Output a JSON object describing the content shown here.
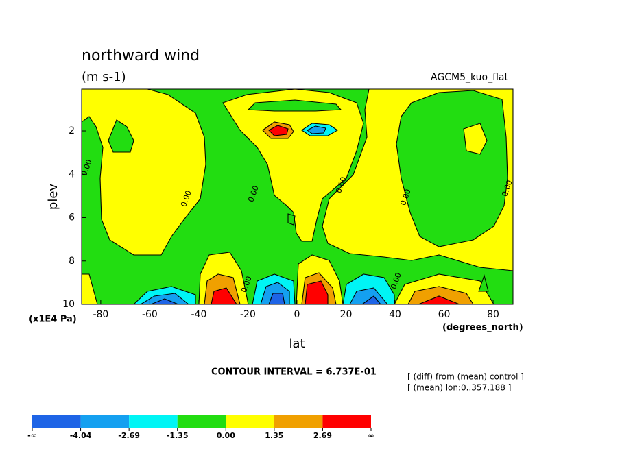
{
  "chart_data": {
    "type": "contour",
    "title": "northward wind",
    "subtitle": "(m s-1)",
    "dataset_label": "AGCM5_kuo_flat",
    "y_label": "plev",
    "y_units": "(x1E4 Pa)",
    "x_label": "lat",
    "x_units": "(degrees_north)",
    "contour_interval": "CONTOUR INTERVAL = 6.737E-01",
    "notes": [
      "[ (diff) from (mean) control ]",
      "[ (mean) lon:0..357.188 ]"
    ],
    "xlim": [
      -87.8,
      88.1
    ],
    "xticks": [
      -80,
      -60,
      -40,
      -20,
      0,
      20,
      40,
      60,
      80
    ],
    "ylim": [
      10,
      0.07
    ],
    "yticks": [
      2,
      4,
      6,
      8,
      10
    ],
    "contour_labels": [
      "0.00",
      "0.00",
      "0.00",
      "0.00",
      "0.00",
      "0.00",
      "0.00",
      "0.00"
    ],
    "colorbar": {
      "colors": [
        "#1e64e6",
        "#14a0f0",
        "#00f5f5",
        "#22dd11",
        "#ffff00",
        "#f0a000",
        "#ff0000"
      ],
      "labels": [
        "-∞",
        "-4.04",
        "-2.69",
        "-1.35",
        "0.00",
        "1.35",
        "2.69",
        "∞"
      ]
    }
  }
}
